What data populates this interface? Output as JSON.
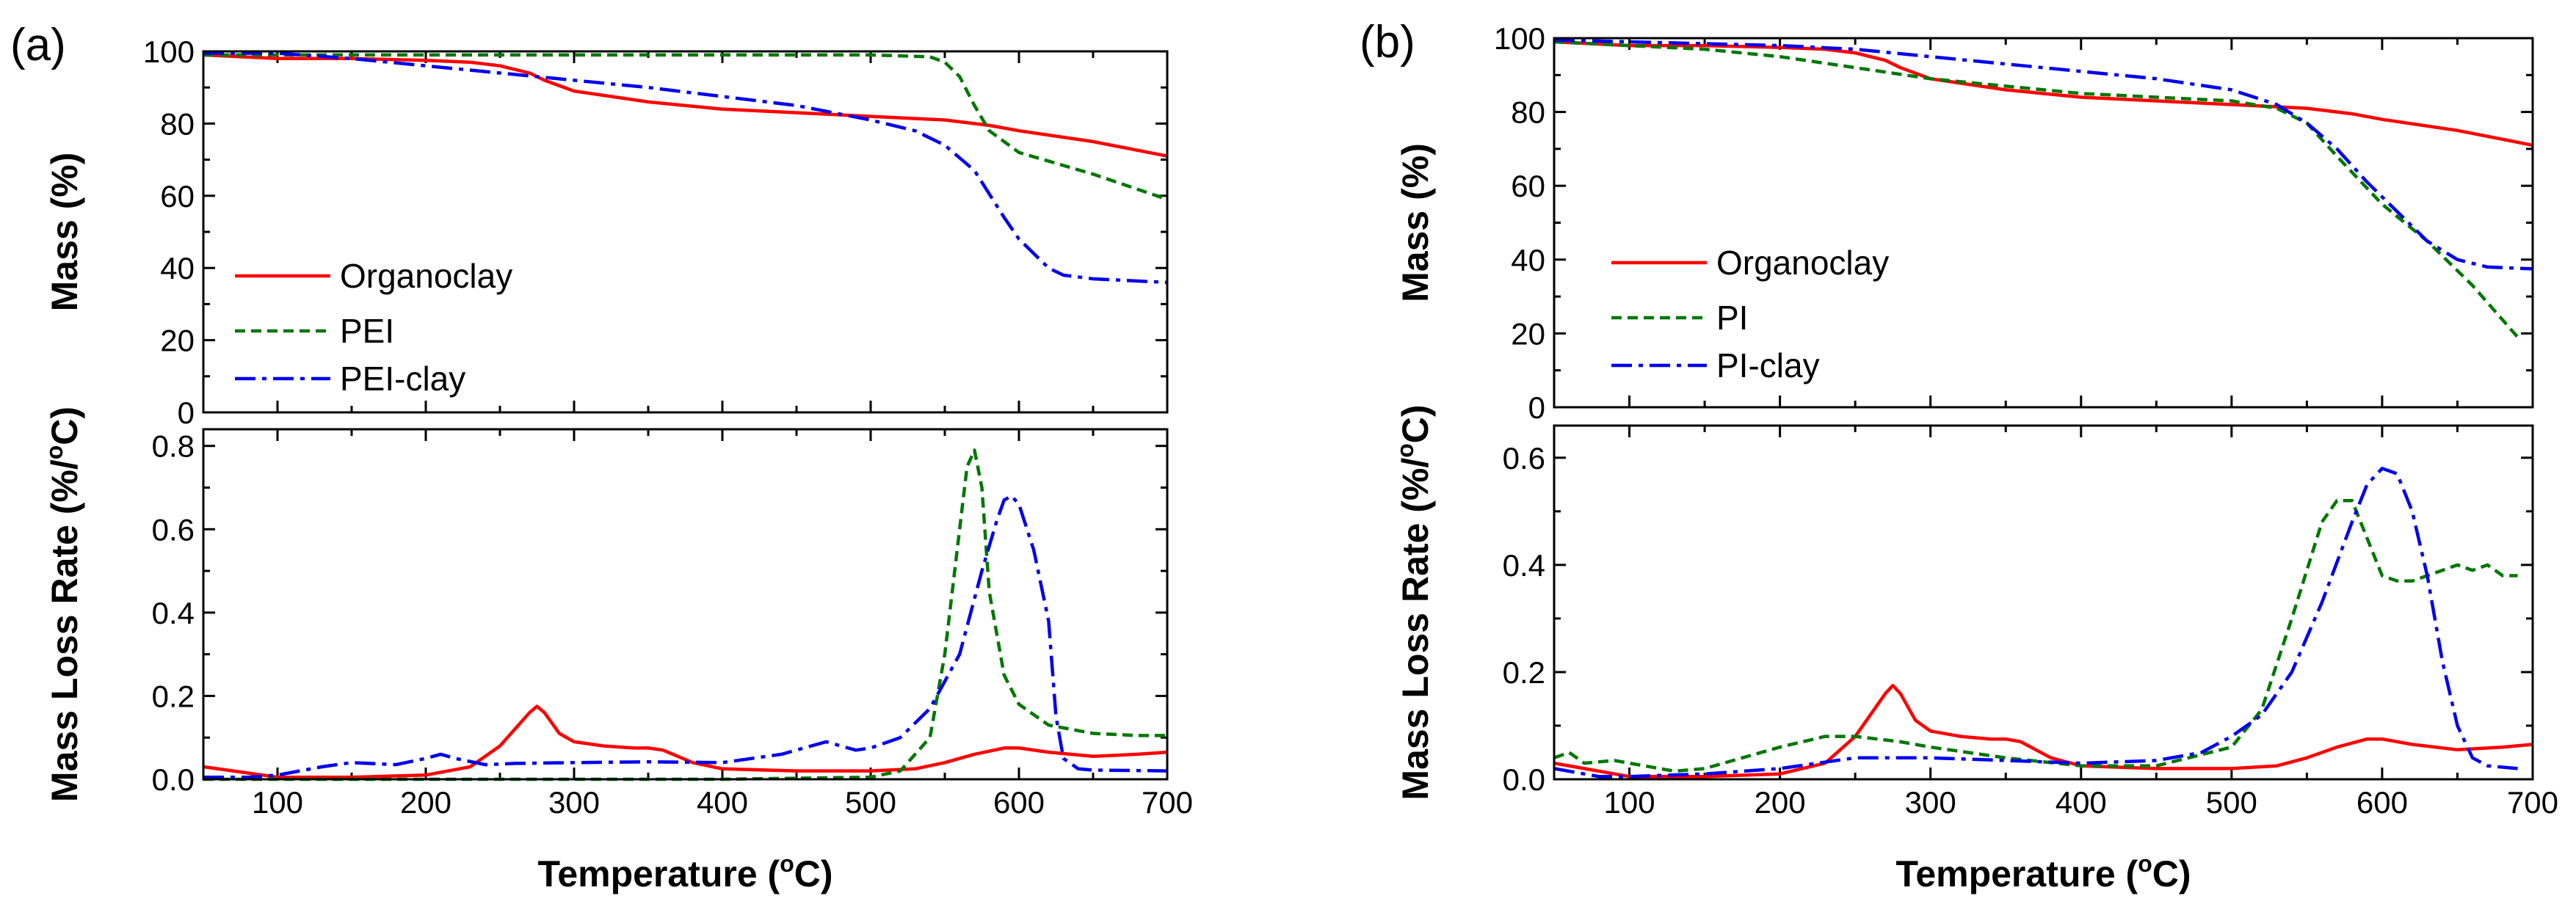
{
  "figure": {
    "temperature_label": "Temperature (",
    "temperature_unit": "C)",
    "degree_symbol": "o",
    "rate_label_main": "Mass Loss Rate (%/",
    "rate_label_tail": "C)"
  },
  "chart_data": [
    {
      "panel": "(a)",
      "type": "line",
      "xlabel": "Temperature (°C)",
      "xlim": [
        50,
        700
      ],
      "xticks": [
        100,
        200,
        300,
        400,
        500,
        600,
        700
      ],
      "top": {
        "ylabel": "Mass (%)",
        "ylim": [
          0,
          100
        ],
        "yticks": [
          0,
          20,
          40,
          60,
          80,
          100
        ],
        "legend_position": "bottom-left",
        "series": [
          {
            "name": "Organoclay",
            "color": "#ff0000",
            "style": "solid",
            "x": [
              50,
              100,
              150,
              200,
              230,
              250,
              270,
              280,
              300,
              350,
              400,
              450,
              500,
              550,
              580,
              600,
              650,
              700
            ],
            "y": [
              99,
              98,
              98,
              97.5,
              97,
              96,
              94,
              92,
              89,
              86,
              84,
              83,
              82,
              81,
              79.5,
              78,
              75,
              71
            ]
          },
          {
            "name": "PEI",
            "color": "#007700",
            "style": "dash",
            "x": [
              50,
              100,
              200,
              300,
              400,
              500,
              540,
              550,
              560,
              570,
              580,
              590,
              600,
              650,
              700
            ],
            "y": [
              99,
              99,
              99,
              99,
              99,
              99,
              98.5,
              97,
              93,
              85,
              78,
              75,
              72,
              66,
              59
            ]
          },
          {
            "name": "PEI-clay",
            "color": "#0000ee",
            "style": "dashdot",
            "x": [
              50,
              100,
              150,
              200,
              250,
              300,
              350,
              400,
              450,
              500,
              530,
              550,
              570,
              590,
              600,
              620,
              630,
              650,
              700
            ],
            "y": [
              99.5,
              99.5,
              98,
              96,
              94,
              92,
              90,
              87.5,
              85,
              81,
              78,
              74,
              67,
              54,
              48,
              40,
              38,
              37,
              36
            ]
          }
        ]
      },
      "bottom": {
        "ylabel": "Mass Loss Rate (%/°C)",
        "ylim": [
          0,
          0.84
        ],
        "yticks": [
          0.0,
          0.2,
          0.4,
          0.6,
          0.8
        ],
        "series": [
          {
            "name": "Organoclay",
            "color": "#ff0000",
            "style": "solid",
            "x": [
              50,
              70,
              100,
              150,
              200,
              230,
              250,
              260,
              270,
              275,
              280,
              290,
              300,
              320,
              340,
              350,
              360,
              380,
              400,
              450,
              500,
              530,
              550,
              570,
              590,
              600,
              620,
              650,
              680,
              700
            ],
            "y": [
              0.03,
              0.02,
              0.005,
              0.005,
              0.01,
              0.03,
              0.08,
              0.12,
              0.16,
              0.175,
              0.16,
              0.11,
              0.09,
              0.08,
              0.075,
              0.075,
              0.07,
              0.04,
              0.025,
              0.02,
              0.02,
              0.025,
              0.04,
              0.06,
              0.075,
              0.075,
              0.065,
              0.055,
              0.06,
              0.065
            ]
          },
          {
            "name": "PEI",
            "color": "#007700",
            "style": "dash",
            "x": [
              50,
              100,
              200,
              300,
              400,
              500,
              520,
              540,
              550,
              560,
              565,
              570,
              575,
              580,
              590,
              600,
              620,
              650,
              680,
              700
            ],
            "y": [
              0.0,
              0.0,
              0.0,
              0.0,
              0.0,
              0.005,
              0.02,
              0.1,
              0.3,
              0.6,
              0.75,
              0.79,
              0.7,
              0.45,
              0.25,
              0.18,
              0.13,
              0.11,
              0.105,
              0.105
            ]
          },
          {
            "name": "PEI-clay",
            "color": "#0000ee",
            "style": "dashdot",
            "x": [
              50,
              80,
              100,
              130,
              150,
              180,
              200,
              210,
              220,
              240,
              260,
              300,
              350,
              400,
              440,
              470,
              480,
              490,
              500,
              520,
              540,
              560,
              575,
              585,
              590,
              595,
              600,
              610,
              620,
              625,
              630,
              640,
              650,
              700
            ],
            "y": [
              0.005,
              0.005,
              0.01,
              0.03,
              0.04,
              0.035,
              0.05,
              0.06,
              0.05,
              0.035,
              0.038,
              0.04,
              0.042,
              0.04,
              0.06,
              0.09,
              0.08,
              0.07,
              0.075,
              0.1,
              0.17,
              0.3,
              0.5,
              0.62,
              0.67,
              0.68,
              0.66,
              0.55,
              0.38,
              0.15,
              0.05,
              0.025,
              0.022,
              0.02
            ]
          }
        ]
      }
    },
    {
      "panel": "(b)",
      "type": "line",
      "xlabel": "Temperature (°C)",
      "xlim": [
        50,
        700
      ],
      "xticks": [
        100,
        200,
        300,
        400,
        500,
        600,
        700
      ],
      "top": {
        "ylabel": "Mass (%)",
        "ylim": [
          0,
          100
        ],
        "yticks": [
          0,
          20,
          40,
          60,
          80,
          100
        ],
        "legend_position": "bottom-left",
        "series": [
          {
            "name": "Organoclay",
            "color": "#ff0000",
            "style": "solid",
            "x": [
              50,
              100,
              150,
              200,
              230,
              250,
              270,
              280,
              300,
              350,
              400,
              450,
              500,
              550,
              580,
              600,
              650,
              700
            ],
            "y": [
              99,
              98,
              98,
              97.5,
              97,
              96,
              94,
              92,
              89,
              86,
              84,
              83,
              82,
              81,
              79.5,
              78,
              75,
              71
            ]
          },
          {
            "name": "PI",
            "color": "#007700",
            "style": "dash",
            "x": [
              50,
              100,
              150,
              200,
              250,
              300,
              350,
              400,
              450,
              500,
              530,
              550,
              570,
              600,
              630,
              660,
              690
            ],
            "y": [
              99,
              98,
              97,
              95,
              92,
              89,
              87,
              85,
              84,
              83,
              81,
              77,
              68,
              55,
              45,
              33,
              19
            ]
          },
          {
            "name": "PI-clay",
            "color": "#0000ee",
            "style": "dashdot",
            "x": [
              50,
              100,
              150,
              200,
              250,
              300,
              350,
              400,
              450,
              500,
              530,
              550,
              570,
              590,
              610,
              630,
              650,
              670,
              700
            ],
            "y": [
              99.5,
              99,
              98.5,
              98,
              97,
              95,
              93,
              91,
              89,
              86,
              82,
              77,
              70,
              61,
              53,
              45,
              40,
              38,
              37.5
            ]
          }
        ]
      },
      "bottom": {
        "ylabel": "Mass Loss Rate (%/°C)",
        "ylim": [
          0,
          0.66
        ],
        "yticks": [
          0.0,
          0.2,
          0.4,
          0.6
        ],
        "series": [
          {
            "name": "Organoclay",
            "color": "#ff0000",
            "style": "solid",
            "x": [
              50,
              70,
              100,
              150,
              200,
              230,
              250,
              260,
              270,
              275,
              280,
              290,
              300,
              320,
              340,
              350,
              360,
              380,
              400,
              450,
              500,
              530,
              550,
              570,
              590,
              600,
              620,
              650,
              680,
              700
            ],
            "y": [
              0.03,
              0.02,
              0.005,
              0.005,
              0.01,
              0.03,
              0.08,
              0.12,
              0.16,
              0.175,
              0.16,
              0.11,
              0.09,
              0.08,
              0.075,
              0.075,
              0.07,
              0.04,
              0.025,
              0.02,
              0.02,
              0.025,
              0.04,
              0.06,
              0.075,
              0.075,
              0.065,
              0.055,
              0.06,
              0.065
            ]
          },
          {
            "name": "PI",
            "color": "#007700",
            "style": "dash",
            "x": [
              50,
              60,
              70,
              90,
              110,
              130,
              150,
              200,
              230,
              250,
              280,
              300,
              350,
              400,
              450,
              500,
              520,
              540,
              560,
              570,
              580,
              590,
              600,
              610,
              620,
              630,
              640,
              650,
              660,
              670,
              680,
              690
            ],
            "y": [
              0.04,
              0.05,
              0.03,
              0.035,
              0.025,
              0.015,
              0.02,
              0.06,
              0.08,
              0.08,
              0.07,
              0.06,
              0.04,
              0.025,
              0.025,
              0.06,
              0.13,
              0.3,
              0.48,
              0.52,
              0.52,
              0.45,
              0.38,
              0.37,
              0.37,
              0.38,
              0.39,
              0.4,
              0.39,
              0.4,
              0.38,
              0.38
            ]
          },
          {
            "name": "PI-clay",
            "color": "#0000ee",
            "style": "dashdot",
            "x": [
              50,
              80,
              100,
              150,
              200,
              250,
              300,
              350,
              400,
              450,
              480,
              500,
              520,
              540,
              560,
              580,
              590,
              600,
              610,
              620,
              630,
              640,
              650,
              660,
              670,
              690
            ],
            "y": [
              0.02,
              0.005,
              0.005,
              0.01,
              0.02,
              0.04,
              0.04,
              0.035,
              0.03,
              0.035,
              0.05,
              0.08,
              0.12,
              0.2,
              0.33,
              0.48,
              0.55,
              0.58,
              0.57,
              0.5,
              0.38,
              0.22,
              0.1,
              0.04,
              0.025,
              0.02
            ]
          }
        ]
      }
    }
  ]
}
